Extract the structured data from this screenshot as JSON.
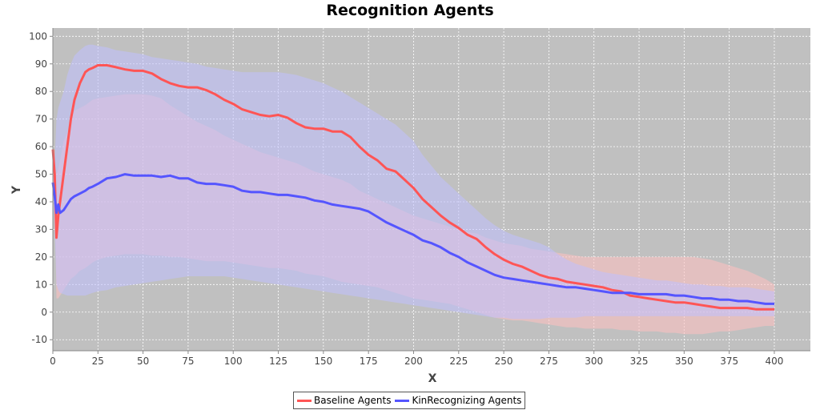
{
  "chart_data": {
    "type": "line",
    "title": "Recognition Agents",
    "xlabel": "X",
    "ylabel": "Y",
    "xlim": [
      0,
      420
    ],
    "ylim": [
      -14,
      103
    ],
    "xticks": [
      0,
      25,
      50,
      75,
      100,
      125,
      150,
      175,
      200,
      225,
      250,
      275,
      300,
      325,
      350,
      375,
      400
    ],
    "yticks": [
      -10,
      0,
      10,
      20,
      30,
      40,
      50,
      60,
      70,
      80,
      90,
      100
    ],
    "grid": true,
    "legend_position": "bottom",
    "background_color": "#c0c0c0",
    "series": [
      {
        "name": "Baseline Agents",
        "color": "#ff5555",
        "band_color": "#ffc0c0",
        "x": [
          0,
          1,
          2,
          3,
          4,
          6,
          8,
          10,
          12,
          15,
          18,
          20,
          22,
          25,
          30,
          35,
          40,
          45,
          50,
          55,
          60,
          65,
          70,
          75,
          80,
          85,
          90,
          95,
          100,
          105,
          110,
          115,
          120,
          125,
          130,
          135,
          140,
          145,
          150,
          155,
          160,
          165,
          170,
          175,
          180,
          185,
          190,
          195,
          200,
          205,
          210,
          215,
          220,
          225,
          230,
          235,
          240,
          245,
          250,
          255,
          260,
          265,
          270,
          275,
          280,
          285,
          290,
          295,
          300,
          305,
          310,
          315,
          320,
          325,
          330,
          335,
          340,
          345,
          350,
          355,
          360,
          365,
          370,
          375,
          380,
          385,
          390,
          395,
          400
        ],
        "mean": [
          59,
          50,
          27,
          35,
          40,
          50,
          60,
          70,
          77,
          83,
          87,
          88,
          88.5,
          89.5,
          89.5,
          88.8,
          88,
          87.5,
          87.5,
          86.5,
          84.5,
          83,
          82,
          81.5,
          81.5,
          80.5,
          79,
          77,
          75.5,
          73.5,
          72.5,
          71.5,
          71,
          71.5,
          70.5,
          68.5,
          67,
          66.5,
          66.5,
          65.5,
          65.5,
          63.5,
          60,
          57,
          55,
          52,
          51,
          48,
          45,
          41,
          38,
          35,
          32.5,
          30.5,
          28,
          26.5,
          23.5,
          21,
          19,
          17.5,
          16.5,
          15,
          13.5,
          12.5,
          12,
          11,
          10.5,
          10,
          9.5,
          9,
          8,
          7.5,
          6,
          5.5,
          5,
          4.5,
          4,
          3.5,
          3.5,
          3,
          2.5,
          2,
          1.5,
          1.5,
          1.5,
          1.5,
          1,
          1,
          1
        ],
        "upper": [
          59,
          55,
          50,
          52,
          55,
          62,
          65,
          70,
          73,
          74,
          75,
          76,
          77,
          77.5,
          78,
          78.5,
          79,
          79,
          79,
          78.5,
          77.5,
          75,
          73,
          71,
          69,
          67.5,
          66,
          64,
          62.5,
          61,
          59.5,
          58,
          57,
          56,
          55,
          54,
          52.5,
          51,
          50,
          49,
          48,
          46.5,
          44,
          42.5,
          41,
          39.5,
          38,
          36.5,
          35,
          34,
          33,
          32,
          31,
          30,
          29,
          28.5,
          27,
          26,
          25,
          24.5,
          24,
          23,
          22.5,
          22,
          21.5,
          21,
          20.5,
          20,
          20,
          20,
          20,
          20,
          20,
          20,
          20,
          20,
          20,
          20,
          20,
          20,
          19.5,
          19,
          18,
          17,
          16,
          15,
          13.5,
          12,
          10
        ],
        "lower": [
          59,
          45,
          5,
          5,
          6,
          8,
          10,
          12,
          13,
          15,
          16,
          17,
          18,
          19,
          20,
          20.5,
          21,
          21,
          21,
          20.5,
          20.5,
          20,
          20,
          19.5,
          19,
          18.5,
          18.5,
          18.5,
          18,
          17.5,
          17,
          16.5,
          16,
          16,
          15.5,
          15,
          14,
          13.5,
          13,
          12,
          11,
          10.5,
          10,
          9.5,
          9,
          8,
          7,
          6,
          5,
          4.5,
          4,
          3.5,
          3,
          2,
          1,
          0,
          -1,
          -2,
          -2.5,
          -3,
          -3,
          -3.5,
          -4,
          -4.5,
          -5,
          -5.5,
          -5.5,
          -6,
          -6,
          -6,
          -6,
          -6.5,
          -6.5,
          -7,
          -7,
          -7,
          -7.5,
          -7.5,
          -8,
          -8,
          -8,
          -7.5,
          -7,
          -7,
          -6.5,
          -6,
          -5.5,
          -5,
          -5
        ]
      },
      {
        "name": "KinRecognizing Agents",
        "color": "#5555ff",
        "band_color": "#c0c0ff",
        "x": [
          0,
          1,
          2,
          3,
          4,
          6,
          8,
          10,
          12,
          15,
          18,
          20,
          22,
          25,
          30,
          35,
          40,
          45,
          50,
          55,
          60,
          65,
          70,
          75,
          80,
          85,
          90,
          95,
          100,
          105,
          110,
          115,
          120,
          125,
          130,
          135,
          140,
          145,
          150,
          155,
          160,
          165,
          170,
          175,
          180,
          185,
          190,
          195,
          200,
          205,
          210,
          215,
          220,
          225,
          230,
          235,
          240,
          245,
          250,
          255,
          260,
          265,
          270,
          275,
          280,
          285,
          290,
          295,
          300,
          305,
          310,
          315,
          320,
          325,
          330,
          335,
          340,
          345,
          350,
          355,
          360,
          365,
          370,
          375,
          380,
          385,
          390,
          395,
          400
        ],
        "mean": [
          47,
          42,
          36,
          39,
          36,
          37,
          39,
          41,
          42,
          43,
          44,
          45,
          45.5,
          46.5,
          48.5,
          49,
          50,
          49.5,
          49.5,
          49.5,
          49,
          49.5,
          48.5,
          48.5,
          47,
          46.5,
          46.5,
          46,
          45.5,
          44,
          43.5,
          43.5,
          43,
          42.5,
          42.5,
          42,
          41.5,
          40.5,
          40,
          39,
          38.5,
          38,
          37.5,
          36.5,
          34.5,
          32.5,
          31,
          29.5,
          28,
          26,
          25,
          23.5,
          21.5,
          20,
          18,
          16.5,
          15,
          13.5,
          12.5,
          12,
          11.5,
          11,
          10.5,
          10,
          9.5,
          9,
          9,
          8.5,
          8,
          7.5,
          7,
          7,
          7,
          6.5,
          6.5,
          6.5,
          6.5,
          6,
          6,
          5.5,
          5,
          5,
          4.5,
          4.5,
          4,
          4,
          3.5,
          3,
          3
        ],
        "upper": [
          47,
          55,
          70,
          74,
          76,
          80,
          86,
          90,
          93,
          95,
          96.5,
          97,
          97,
          96.5,
          96,
          95,
          94.5,
          94,
          93.5,
          92.5,
          92,
          91.5,
          91,
          90.5,
          90,
          89,
          88.5,
          88,
          87.5,
          87,
          87,
          87,
          87,
          87,
          86.5,
          86,
          85,
          84,
          83,
          81.5,
          80,
          78,
          76,
          74,
          72,
          70,
          68,
          65,
          62,
          57,
          53,
          49,
          46,
          43,
          40,
          37,
          34,
          31.5,
          29.5,
          28,
          27,
          26,
          25,
          23.5,
          21,
          19,
          17.5,
          16.5,
          15.5,
          14.5,
          14,
          13.5,
          13,
          12.5,
          12,
          11.5,
          11.5,
          11,
          10.5,
          10,
          10,
          9.5,
          9.5,
          9,
          9,
          9,
          8.5,
          8,
          7.5
        ],
        "lower": [
          47,
          30,
          10,
          8,
          7,
          6.5,
          6,
          6,
          6,
          6,
          6,
          6.5,
          7,
          7.5,
          8,
          9,
          9.5,
          10,
          10.5,
          11,
          11.5,
          12,
          12.5,
          13,
          13,
          13,
          13,
          13,
          12.5,
          12,
          11.5,
          11,
          10.5,
          10,
          9.5,
          9,
          8.5,
          8,
          7.5,
          7,
          6.5,
          6,
          5.5,
          5,
          4.5,
          4,
          3.5,
          3,
          2.5,
          2,
          1.5,
          1,
          0.5,
          0,
          -0.5,
          -1,
          -1.5,
          -2,
          -2,
          -2.5,
          -2.5,
          -2.5,
          -2.5,
          -2,
          -2,
          -2,
          -2,
          -1.5,
          -1.5,
          -1.5,
          -1.5,
          -1.5,
          -1.5,
          -1.5,
          -1.5,
          -1.5,
          -1.5,
          -1.5,
          -1.5,
          -1.5,
          -1.5,
          -1.5,
          -1.5,
          -1.5,
          -1.5,
          -1.5,
          -1.5,
          -1.5,
          -1.5
        ]
      }
    ]
  }
}
